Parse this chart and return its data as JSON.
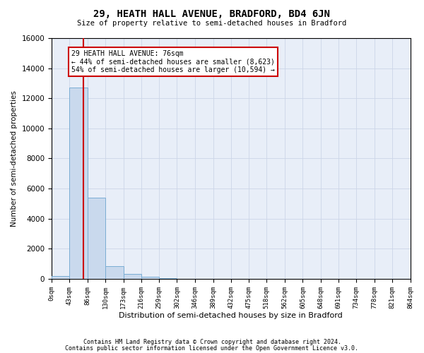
{
  "title": "29, HEATH HALL AVENUE, BRADFORD, BD4 6JN",
  "subtitle": "Size of property relative to semi-detached houses in Bradford",
  "xlabel": "Distribution of semi-detached houses by size in Bradford",
  "ylabel": "Number of semi-detached properties",
  "bin_edges": [
    0,
    43,
    86,
    130,
    173,
    216,
    259,
    302,
    346,
    389,
    432,
    475,
    518,
    562,
    605,
    648,
    691,
    734,
    778,
    821,
    864
  ],
  "bar_heights": [
    200,
    12700,
    5400,
    850,
    310,
    130,
    50,
    20,
    10,
    8,
    5,
    3,
    2,
    2,
    1,
    1,
    1,
    0,
    0,
    0
  ],
  "bar_color": "#c9d9ed",
  "bar_edge_color": "#7aadd4",
  "property_size": 76,
  "red_line_color": "#cc0000",
  "annotation_text": "29 HEATH HALL AVENUE: 76sqm\n← 44% of semi-detached houses are smaller (8,623)\n54% of semi-detached houses are larger (10,594) →",
  "annotation_box_color": "#ffffff",
  "annotation_box_edge": "#cc0000",
  "ylim": [
    0,
    16000
  ],
  "yticks": [
    0,
    2000,
    4000,
    6000,
    8000,
    10000,
    12000,
    14000,
    16000
  ],
  "footer_line1": "Contains HM Land Registry data © Crown copyright and database right 2024.",
  "footer_line2": "Contains public sector information licensed under the Open Government Licence v3.0.",
  "bg_color": "#ffffff",
  "grid_color": "#ccd6e8"
}
